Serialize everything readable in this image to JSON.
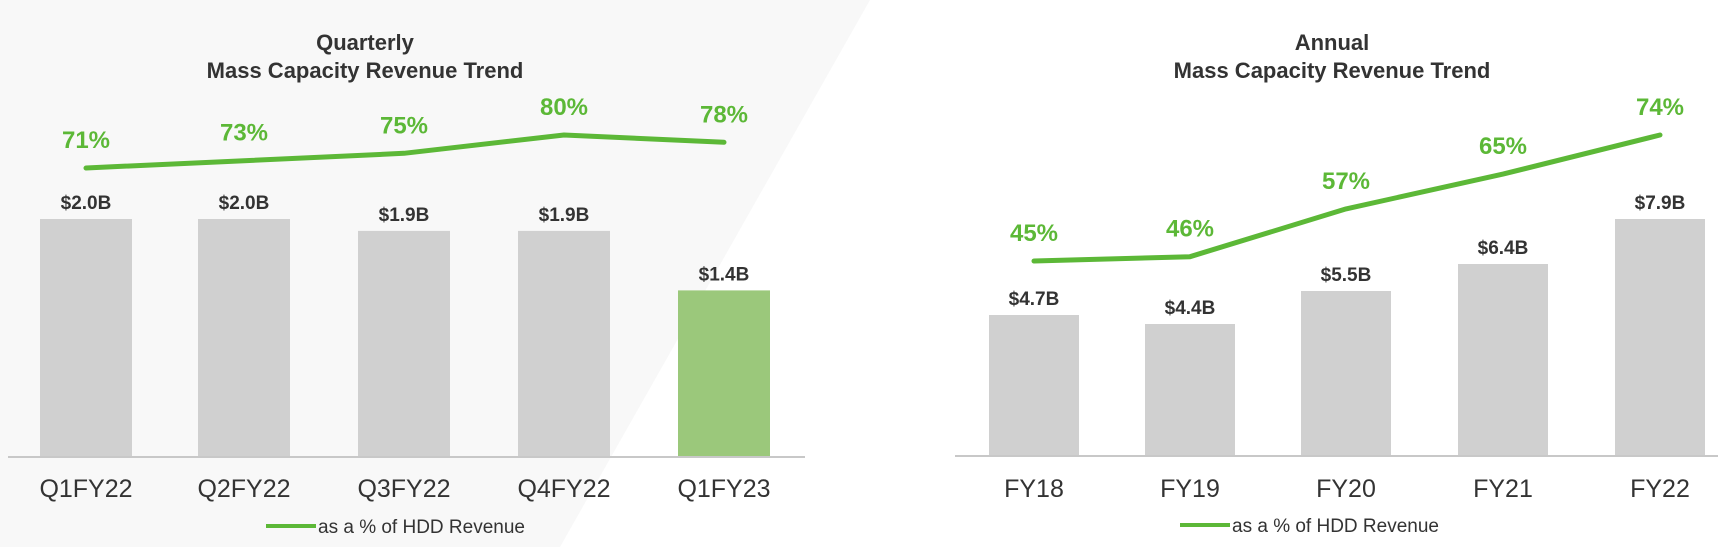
{
  "charts": [
    {
      "title_line1": "Quarterly",
      "title_line2": "Mass Capacity Revenue Trend",
      "legend_label": "as a % of HDD Revenue",
      "chart_data": {
        "type": "bar",
        "categories": [
          "Q1FY22",
          "Q2FY22",
          "Q3FY22",
          "Q4FY22",
          "Q1FY23"
        ],
        "series": [
          {
            "values": [
              2.0,
              2.0,
              1.9,
              1.9,
              1.4
            ],
            "labels": [
              "$2.0B",
              "$2.0B",
              "$1.9B",
              "$1.9B",
              "$1.4B"
            ],
            "colors": [
              "#d0d0d0",
              "#d0d0d0",
              "#d0d0d0",
              "#d0d0d0",
              "#9bc87b"
            ]
          },
          {
            "name": "as a % of HDD Revenue",
            "type": "line",
            "values": [
              71,
              73,
              75,
              80,
              78
            ],
            "labels": [
              "71%",
              "73%",
              "75%",
              "80%",
              "78%"
            ],
            "color": "#5cb837"
          }
        ],
        "legend_position": "bottom"
      }
    },
    {
      "title_line1": "Annual",
      "title_line2": "Mass Capacity Revenue Trend",
      "legend_label": "as a % of HDD Revenue",
      "chart_data": {
        "type": "bar",
        "categories": [
          "FY18",
          "FY19",
          "FY20",
          "FY21",
          "FY22"
        ],
        "series": [
          {
            "values": [
              4.7,
              4.4,
              5.5,
              6.4,
              7.9
            ],
            "labels": [
              "$4.7B",
              "$4.4B",
              "$5.5B",
              "$6.4B",
              "$7.9B"
            ],
            "colors": [
              "#d0d0d0",
              "#d0d0d0",
              "#d0d0d0",
              "#d0d0d0",
              "#d0d0d0"
            ]
          },
          {
            "name": "as a % of HDD Revenue",
            "type": "line",
            "values": [
              45,
              46,
              57,
              65,
              74
            ],
            "labels": [
              "45%",
              "46%",
              "57%",
              "65%",
              "74%"
            ],
            "color": "#5cb837"
          }
        ],
        "legend_position": "bottom"
      }
    }
  ]
}
